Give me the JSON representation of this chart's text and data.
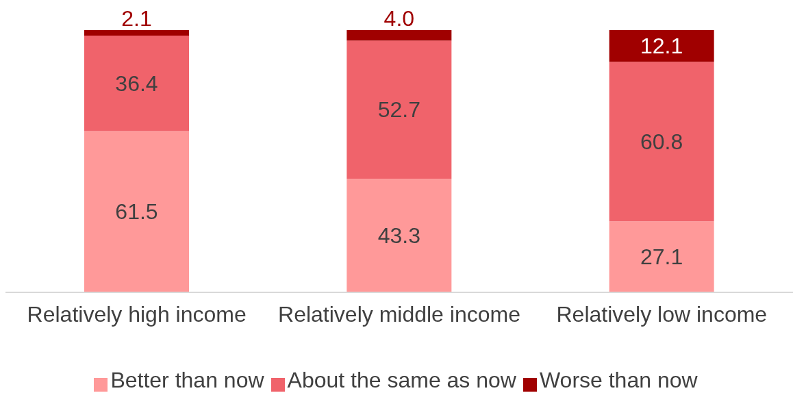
{
  "chart_data": {
    "type": "bar",
    "stacked": true,
    "categories": [
      "Relatively high income",
      "Relatively middle income",
      "Relatively low income"
    ],
    "series": [
      {
        "name": "Better than now",
        "color": "#ff9999",
        "values": [
          61.5,
          43.3,
          27.1
        ],
        "value_labels": [
          "61.5",
          "43.3",
          "27.1"
        ]
      },
      {
        "name": "About the same as now",
        "color": "#f0636b",
        "values": [
          36.4,
          52.7,
          60.8
        ],
        "value_labels": [
          "36.4",
          "52.7",
          "60.8"
        ]
      },
      {
        "name": "Worse than now",
        "color": "#a00000",
        "values": [
          2.1,
          4.0,
          12.1
        ],
        "value_labels": [
          "2.1",
          "4.0",
          "12.1"
        ]
      }
    ],
    "legend": "bottom",
    "grid": false
  }
}
